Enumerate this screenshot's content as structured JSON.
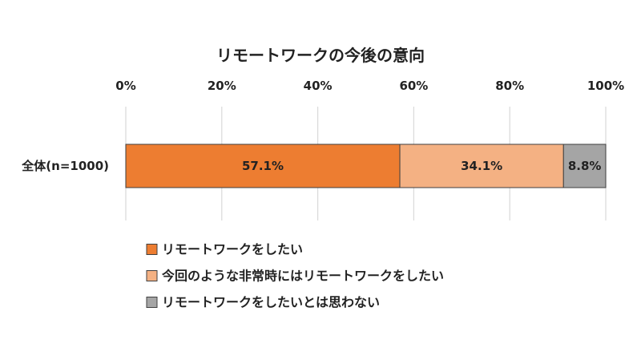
{
  "chart_data": {
    "type": "bar",
    "orientation": "horizontal",
    "stacked": "percent",
    "title": "リモートワークの今後の意向",
    "categories": [
      "全体(n=1000)"
    ],
    "xlim": [
      0,
      100
    ],
    "x_ticks": [
      0,
      20,
      40,
      60,
      80,
      100
    ],
    "x_tick_labels": [
      "0%",
      "20%",
      "40%",
      "60%",
      "80%",
      "100%"
    ],
    "axis_position": "top",
    "grid": "vertical",
    "legend_position": "bottom",
    "series": [
      {
        "name": "リモートワークをしたい",
        "values": [
          57.1
        ],
        "label": "57.1%",
        "color": "#ED7D31"
      },
      {
        "name": "今回のような非常時にはリモートワークをしたい",
        "values": [
          34.1
        ],
        "label": "34.1%",
        "color": "#F4B183"
      },
      {
        "name": "リモートワークをしたいとは思わない",
        "values": [
          8.8
        ],
        "label": "8.8%",
        "color": "#A5A5A5"
      }
    ],
    "grid_color": "#D9D9D9",
    "bar_border_color": "#404040"
  }
}
